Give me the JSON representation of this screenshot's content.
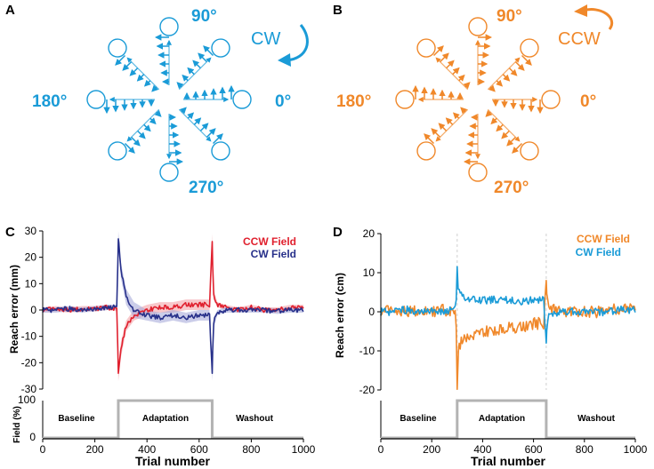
{
  "panels": {
    "A": {
      "label": "A",
      "rotation": "CW",
      "color": "#1a9bd7",
      "directions": [
        "0°",
        "90°",
        "180°",
        "270°"
      ]
    },
    "B": {
      "label": "B",
      "rotation": "CCW",
      "color": "#f0882a",
      "directions": [
        "0°",
        "90°",
        "180°",
        "270°"
      ]
    },
    "C": {
      "label": "C",
      "ylabel": "Reach error (mm)",
      "field_label": "Field (%)",
      "xlabel": "Trial number",
      "phases": [
        "Baseline",
        "Adaptation",
        "Washout"
      ],
      "field_ticks": [
        "0",
        "100"
      ],
      "y_ticks": [
        "30",
        "20",
        "10",
        "0",
        "-10",
        "-20",
        "-30"
      ],
      "x_ticks": [
        "0",
        "200",
        "400",
        "600",
        "800",
        "1000"
      ]
    },
    "D": {
      "label": "D",
      "ylabel": "Reach error (cm)",
      "xlabel": "Trial number",
      "phases": [
        "Baseline",
        "Adaptation",
        "Washout"
      ],
      "y_ticks": [
        "20",
        "10",
        "0",
        "-10",
        "-20"
      ],
      "x_ticks": [
        "0",
        "200",
        "400",
        "600",
        "800",
        "1000"
      ]
    }
  },
  "chart_data": [
    {
      "type": "line",
      "panel": "C",
      "xlabel": "Trial number",
      "ylabel": "Reach error (mm)",
      "xlim": [
        0,
        1000
      ],
      "ylim": [
        -30,
        30
      ],
      "phase_bounds": [
        290,
        650
      ],
      "field_percent": {
        "baseline": 0,
        "adaptation": 100,
        "washout": 0
      },
      "series": [
        {
          "name": "CCW Field",
          "color": "#e0202e",
          "band_color": "#f4a3a8",
          "x": [
            0,
            50,
            100,
            150,
            200,
            250,
            285,
            290,
            300,
            320,
            350,
            400,
            450,
            500,
            550,
            600,
            640,
            650,
            655,
            670,
            700,
            750,
            800,
            850,
            900,
            950,
            1000
          ],
          "y": [
            0,
            0.5,
            0,
            0.5,
            0.5,
            1,
            0.5,
            -24,
            -15,
            -6,
            -2,
            0,
            1,
            1,
            2,
            2,
            2,
            26,
            6,
            2,
            1,
            0,
            1,
            0,
            0,
            1,
            1
          ],
          "sem": [
            1,
            1,
            1,
            1,
            1,
            1,
            1,
            3,
            3,
            2,
            2,
            2,
            2,
            2,
            2,
            2,
            2,
            3,
            2,
            1,
            1,
            1,
            1,
            1,
            1,
            1,
            1
          ]
        },
        {
          "name": "CW Field",
          "color": "#27308a",
          "band_color": "#a8acdb",
          "x": [
            0,
            50,
            100,
            150,
            200,
            250,
            285,
            290,
            300,
            320,
            350,
            400,
            450,
            500,
            550,
            600,
            640,
            650,
            655,
            670,
            700,
            750,
            800,
            850,
            900,
            950,
            1000
          ],
          "y": [
            0,
            0,
            0.5,
            0,
            0.5,
            1,
            1,
            27,
            15,
            5,
            0,
            -2,
            -3,
            -2,
            -3,
            -2,
            -2,
            -24,
            -5,
            -1,
            0,
            0,
            0,
            0,
            -0.5,
            0,
            0
          ],
          "sem": [
            1,
            1,
            1,
            1,
            1,
            1,
            1,
            3,
            3,
            3,
            3,
            2,
            2,
            2,
            2,
            2,
            2,
            3,
            2,
            1,
            1,
            1,
            1,
            1,
            1,
            1,
            1
          ]
        }
      ]
    },
    {
      "type": "line",
      "panel": "D",
      "xlabel": "Trial number",
      "ylabel": "Reach error (cm)",
      "xlim": [
        0,
        1000
      ],
      "ylim": [
        -20,
        20
      ],
      "phase_bounds": [
        300,
        650
      ],
      "field_percent": {
        "baseline": 0,
        "adaptation": 100,
        "washout": 0
      },
      "series": [
        {
          "name": "CCW Field",
          "color": "#f0882a",
          "x": [
            0,
            50,
            100,
            150,
            200,
            250,
            295,
            300,
            305,
            320,
            350,
            400,
            450,
            500,
            550,
            600,
            640,
            650,
            655,
            670,
            700,
            750,
            800,
            850,
            900,
            950,
            1000
          ],
          "y": [
            0,
            0.5,
            0,
            0.5,
            0,
            0.5,
            0,
            -20,
            -10,
            -7,
            -6,
            -5,
            -5,
            -4,
            -4,
            -3,
            -3,
            8,
            3,
            1,
            0,
            0,
            0,
            0,
            0.5,
            1,
            1
          ],
          "jitter": 1.5
        },
        {
          "name": "CW Field",
          "color": "#1a9bd7",
          "x": [
            0,
            50,
            100,
            150,
            200,
            250,
            295,
            300,
            305,
            320,
            350,
            400,
            450,
            500,
            550,
            600,
            640,
            650,
            655,
            670,
            700,
            750,
            800,
            850,
            900,
            950,
            1000
          ],
          "y": [
            0,
            0,
            0.5,
            0,
            0.5,
            0,
            0.5,
            11,
            5,
            4,
            3.5,
            3,
            3,
            3,
            2.5,
            3,
            3,
            -8,
            -2,
            -0.5,
            0,
            0,
            0,
            0,
            0,
            0.5,
            0.5
          ],
          "jitter": 1.0
        }
      ]
    }
  ]
}
